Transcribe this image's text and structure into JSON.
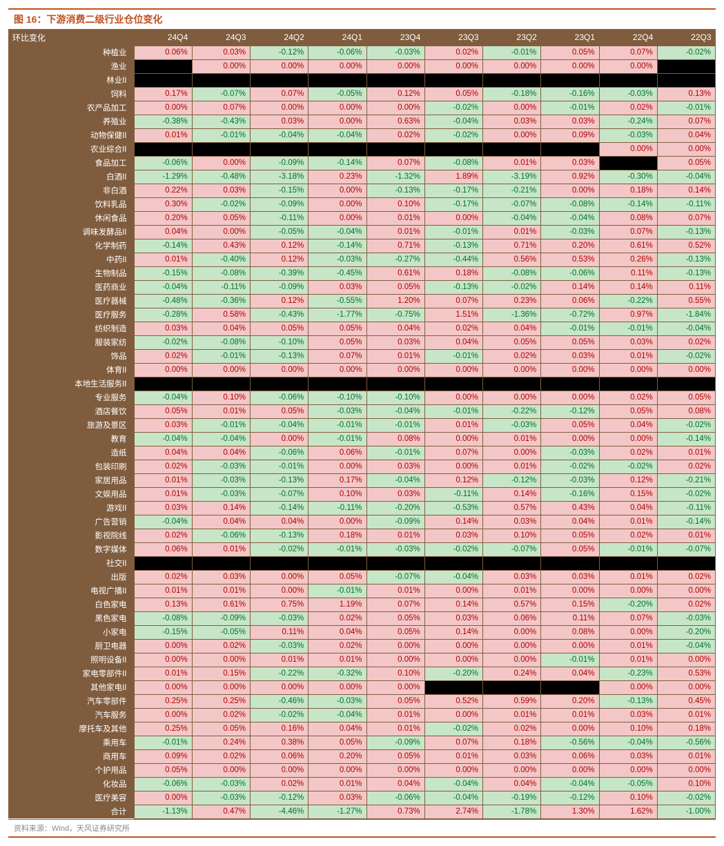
{
  "title": "图 16：下游消费二级行业仓位变化",
  "source": "资料来源：Wind，天风证券研究所",
  "row_header_label": "环比变化",
  "columns": [
    "24Q4",
    "24Q3",
    "24Q2",
    "24Q1",
    "23Q4",
    "23Q3",
    "23Q2",
    "23Q1",
    "22Q4",
    "22Q3"
  ],
  "colors": {
    "header_bg": "#7f5c3d",
    "header_fg": "#ffffff",
    "title_color": "#c05020",
    "pos_bg": "#f3c7c7",
    "pos_fg": "#b00000",
    "neg_bg": "#c7e6c7",
    "neg_fg": "#007030",
    "na_bg": "#000000",
    "source_fg": "#888888"
  },
  "rows": [
    {
      "label": "种植业",
      "v": [
        0.06,
        0.03,
        -0.12,
        -0.06,
        -0.03,
        0.02,
        -0.01,
        0.05,
        0.07,
        -0.02
      ]
    },
    {
      "label": "渔业",
      "v": [
        null,
        0.0,
        0.0,
        0.0,
        0.0,
        0.0,
        0.0,
        0.0,
        0.0,
        null
      ]
    },
    {
      "label": "林业II",
      "v": [
        null,
        null,
        null,
        null,
        null,
        null,
        null,
        null,
        null,
        null
      ]
    },
    {
      "label": "饲料",
      "v": [
        0.17,
        -0.07,
        0.07,
        -0.05,
        0.12,
        0.05,
        -0.18,
        -0.16,
        -0.03,
        0.13
      ]
    },
    {
      "label": "农产品加工",
      "v": [
        0.0,
        0.07,
        0.0,
        0.0,
        0.0,
        -0.02,
        0.0,
        -0.01,
        0.02,
        -0.01
      ]
    },
    {
      "label": "养殖业",
      "v": [
        -0.38,
        -0.43,
        0.03,
        0.0,
        0.63,
        -0.04,
        0.03,
        0.03,
        -0.24,
        0.07
      ]
    },
    {
      "label": "动物保健II",
      "v": [
        0.01,
        -0.01,
        -0.04,
        -0.04,
        0.02,
        -0.02,
        0.0,
        0.09,
        -0.03,
        0.04
      ]
    },
    {
      "label": "农业综合II",
      "v": [
        null,
        null,
        null,
        null,
        null,
        null,
        null,
        null,
        0.0,
        0.0
      ]
    },
    {
      "label": "食品加工",
      "v": [
        -0.06,
        0.0,
        -0.09,
        -0.14,
        0.07,
        -0.08,
        0.01,
        0.03,
        null,
        0.05
      ]
    },
    {
      "label": "白酒II",
      "v": [
        -1.29,
        -0.48,
        -3.18,
        0.23,
        -1.32,
        1.89,
        -3.19,
        0.92,
        -0.3,
        -0.04
      ]
    },
    {
      "label": "非白酒",
      "v": [
        0.22,
        0.03,
        -0.15,
        0.0,
        -0.13,
        -0.17,
        -0.21,
        0.0,
        0.18,
        0.14
      ]
    },
    {
      "label": "饮料乳品",
      "v": [
        0.3,
        -0.02,
        -0.09,
        0.0,
        0.1,
        -0.17,
        -0.07,
        -0.08,
        -0.14,
        -0.11
      ]
    },
    {
      "label": "休闲食品",
      "v": [
        0.2,
        0.05,
        -0.11,
        0.0,
        0.01,
        0.0,
        -0.04,
        -0.04,
        0.08,
        0.07
      ]
    },
    {
      "label": "调味发酵品II",
      "v": [
        0.04,
        0.0,
        -0.05,
        -0.04,
        0.01,
        -0.01,
        0.01,
        -0.03,
        0.07,
        -0.13
      ]
    },
    {
      "label": "化学制药",
      "v": [
        -0.14,
        0.43,
        0.12,
        -0.14,
        0.71,
        -0.13,
        0.71,
        0.2,
        0.61,
        0.52
      ]
    },
    {
      "label": "中药II",
      "v": [
        0.01,
        -0.4,
        0.12,
        -0.03,
        -0.27,
        -0.44,
        0.56,
        0.53,
        0.26,
        -0.13
      ]
    },
    {
      "label": "生物制品",
      "v": [
        -0.15,
        -0.08,
        -0.39,
        -0.45,
        0.61,
        0.18,
        -0.08,
        -0.06,
        0.11,
        -0.13
      ]
    },
    {
      "label": "医药商业",
      "v": [
        -0.04,
        -0.11,
        -0.09,
        0.03,
        0.05,
        -0.13,
        -0.02,
        0.14,
        0.14,
        0.11
      ]
    },
    {
      "label": "医疗器械",
      "v": [
        -0.48,
        -0.36,
        0.12,
        -0.55,
        1.2,
        0.07,
        0.23,
        0.06,
        -0.22,
        0.55
      ]
    },
    {
      "label": "医疗服务",
      "v": [
        -0.28,
        0.58,
        -0.43,
        -1.77,
        -0.75,
        1.51,
        -1.36,
        -0.72,
        0.97,
        -1.84
      ]
    },
    {
      "label": "纺织制造",
      "v": [
        0.03,
        0.04,
        0.05,
        0.05,
        0.04,
        0.02,
        0.04,
        -0.01,
        -0.01,
        -0.04
      ]
    },
    {
      "label": "服装家纺",
      "v": [
        -0.02,
        -0.08,
        -0.1,
        0.05,
        0.03,
        0.04,
        0.05,
        0.05,
        0.03,
        0.02
      ]
    },
    {
      "label": "饰品",
      "v": [
        0.02,
        -0.01,
        -0.13,
        0.07,
        0.01,
        -0.01,
        0.02,
        0.03,
        0.01,
        -0.02
      ]
    },
    {
      "label": "体育II",
      "v": [
        0.0,
        0.0,
        0.0,
        0.0,
        0.0,
        0.0,
        0.0,
        0.0,
        0.0,
        0.0
      ]
    },
    {
      "label": "本地生活服务II",
      "v": [
        null,
        null,
        null,
        null,
        null,
        null,
        null,
        null,
        null,
        null
      ]
    },
    {
      "label": "专业服务",
      "v": [
        -0.04,
        0.1,
        -0.06,
        -0.1,
        -0.1,
        0.0,
        0.0,
        0.0,
        0.02,
        0.05
      ]
    },
    {
      "label": "酒店餐饮",
      "v": [
        0.05,
        0.01,
        0.05,
        -0.03,
        -0.04,
        -0.01,
        -0.22,
        -0.12,
        0.05,
        0.08
      ]
    },
    {
      "label": "旅游及景区",
      "v": [
        0.03,
        -0.01,
        -0.04,
        -0.01,
        -0.01,
        0.01,
        -0.03,
        0.05,
        0.04,
        -0.02
      ]
    },
    {
      "label": "教育",
      "v": [
        -0.04,
        -0.04,
        0.0,
        -0.01,
        0.08,
        0.0,
        0.01,
        0.0,
        0.0,
        -0.14
      ]
    },
    {
      "label": "造纸",
      "v": [
        0.04,
        0.04,
        -0.06,
        0.06,
        -0.01,
        0.07,
        0.0,
        -0.03,
        0.02,
        0.01
      ]
    },
    {
      "label": "包装印刷",
      "v": [
        0.02,
        -0.03,
        -0.01,
        0.0,
        0.03,
        0.0,
        0.01,
        -0.02,
        -0.02,
        0.02
      ]
    },
    {
      "label": "家居用品",
      "v": [
        0.01,
        -0.03,
        -0.13,
        0.17,
        -0.04,
        0.12,
        -0.12,
        -0.03,
        0.12,
        -0.21
      ]
    },
    {
      "label": "文娱用品",
      "v": [
        0.01,
        -0.03,
        -0.07,
        0.1,
        0.03,
        -0.11,
        0.14,
        -0.16,
        0.15,
        -0.02
      ]
    },
    {
      "label": "游戏II",
      "v": [
        0.03,
        0.14,
        -0.14,
        -0.11,
        -0.2,
        -0.53,
        0.57,
        0.43,
        0.04,
        -0.11
      ]
    },
    {
      "label": "广告营销",
      "v": [
        -0.04,
        0.04,
        0.04,
        0.0,
        -0.09,
        0.14,
        0.03,
        0.04,
        0.01,
        -0.14
      ]
    },
    {
      "label": "影视院线",
      "v": [
        0.02,
        -0.06,
        -0.13,
        0.18,
        0.01,
        0.03,
        0.1,
        0.05,
        0.02,
        0.01
      ]
    },
    {
      "label": "数字媒体",
      "v": [
        0.06,
        0.01,
        -0.02,
        -0.01,
        -0.03,
        -0.02,
        -0.07,
        0.05,
        -0.01,
        -0.07
      ]
    },
    {
      "label": "社交II",
      "v": [
        null,
        null,
        null,
        null,
        null,
        null,
        null,
        null,
        null,
        null
      ]
    },
    {
      "label": "出版",
      "v": [
        0.02,
        0.03,
        0.0,
        0.05,
        -0.07,
        -0.04,
        0.03,
        0.03,
        0.01,
        0.02
      ]
    },
    {
      "label": "电视广播II",
      "v": [
        0.01,
        0.01,
        0.0,
        -0.01,
        0.01,
        0.0,
        0.01,
        0.0,
        0.0,
        0.0
      ]
    },
    {
      "label": "白色家电",
      "v": [
        0.13,
        0.61,
        0.75,
        1.19,
        0.07,
        0.14,
        0.57,
        0.15,
        -0.2,
        0.02
      ]
    },
    {
      "label": "黑色家电",
      "v": [
        -0.08,
        -0.09,
        -0.03,
        0.02,
        0.05,
        0.03,
        0.06,
        0.11,
        0.07,
        -0.03
      ]
    },
    {
      "label": "小家电",
      "v": [
        -0.15,
        -0.05,
        0.11,
        0.04,
        0.05,
        0.14,
        0.0,
        0.08,
        0.0,
        -0.2
      ]
    },
    {
      "label": "厨卫电器",
      "v": [
        0.0,
        0.02,
        -0.03,
        0.02,
        0.0,
        0.0,
        0.0,
        0.0,
        0.01,
        -0.04
      ]
    },
    {
      "label": "照明设备II",
      "v": [
        0.0,
        0.0,
        0.01,
        0.01,
        0.0,
        0.0,
        0.0,
        -0.01,
        0.01,
        0.0
      ]
    },
    {
      "label": "家电零部件II",
      "v": [
        0.01,
        0.15,
        -0.22,
        -0.32,
        0.1,
        -0.2,
        0.24,
        0.04,
        -0.23,
        0.53
      ]
    },
    {
      "label": "其他家电II",
      "v": [
        0.0,
        0.0,
        0.0,
        0.0,
        0.0,
        null,
        null,
        null,
        0.0,
        0.0
      ]
    },
    {
      "label": "汽车零部件",
      "v": [
        0.25,
        0.25,
        -0.46,
        -0.03,
        0.05,
        0.52,
        0.59,
        0.2,
        -0.13,
        0.45
      ]
    },
    {
      "label": "汽车服务",
      "v": [
        0.0,
        0.02,
        -0.02,
        -0.04,
        0.01,
        0.0,
        0.01,
        0.01,
        0.03,
        0.01
      ]
    },
    {
      "label": "摩托车及其他",
      "v": [
        0.25,
        0.05,
        0.16,
        0.04,
        0.01,
        -0.02,
        0.02,
        0.0,
        0.1,
        0.18
      ]
    },
    {
      "label": "乘用车",
      "v": [
        -0.01,
        0.24,
        0.38,
        0.05,
        -0.09,
        0.07,
        0.18,
        -0.56,
        -0.04,
        -0.56
      ]
    },
    {
      "label": "商用车",
      "v": [
        0.09,
        0.02,
        0.06,
        0.2,
        0.05,
        0.01,
        0.03,
        0.06,
        0.03,
        0.01
      ]
    },
    {
      "label": "个护用品",
      "v": [
        0.05,
        0.0,
        0.0,
        0.0,
        0.0,
        0.0,
        0.0,
        0.0,
        0.0,
        0.0
      ]
    },
    {
      "label": "化妆品",
      "v": [
        -0.06,
        -0.03,
        0.02,
        0.01,
        0.04,
        -0.04,
        0.04,
        -0.04,
        -0.05,
        0.1
      ]
    },
    {
      "label": "医疗美容",
      "v": [
        0.0,
        -0.03,
        -0.12,
        0.03,
        -0.06,
        -0.04,
        -0.19,
        -0.12,
        0.1,
        -0.02
      ]
    },
    {
      "label": "合计",
      "v": [
        -1.13,
        0.47,
        -4.46,
        -1.27,
        0.73,
        2.74,
        -1.78,
        1.3,
        1.62,
        -1.0
      ]
    }
  ]
}
